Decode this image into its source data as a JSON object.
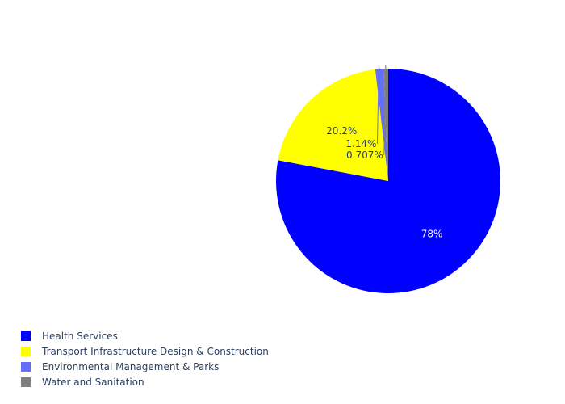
{
  "chart_data": {
    "type": "pie",
    "labels": [
      "Health Services",
      "Transport Infrastructure Design & Construction",
      "Environmental Management & Parks",
      "Water and Sanitation"
    ],
    "values": [
      78.0,
      20.2,
      1.14,
      0.707
    ],
    "value_labels": [
      "78%",
      "20.2%",
      "1.14%",
      "0.707%"
    ],
    "colors": [
      "#0000ff",
      "#ffff00",
      "#636efa",
      "#7f7f7f"
    ],
    "label_colors": [
      "#ffffff",
      "#2a3f5f",
      "#2a3f5f",
      "#2a3f5f"
    ],
    "start_angle": "12 o'clock",
    "direction": "clockwise",
    "legend": {
      "position": "bottom-left",
      "marker_colors": [
        "#0000ff",
        "#ffff00",
        "#636efa",
        "#7f7f7f"
      ]
    }
  }
}
